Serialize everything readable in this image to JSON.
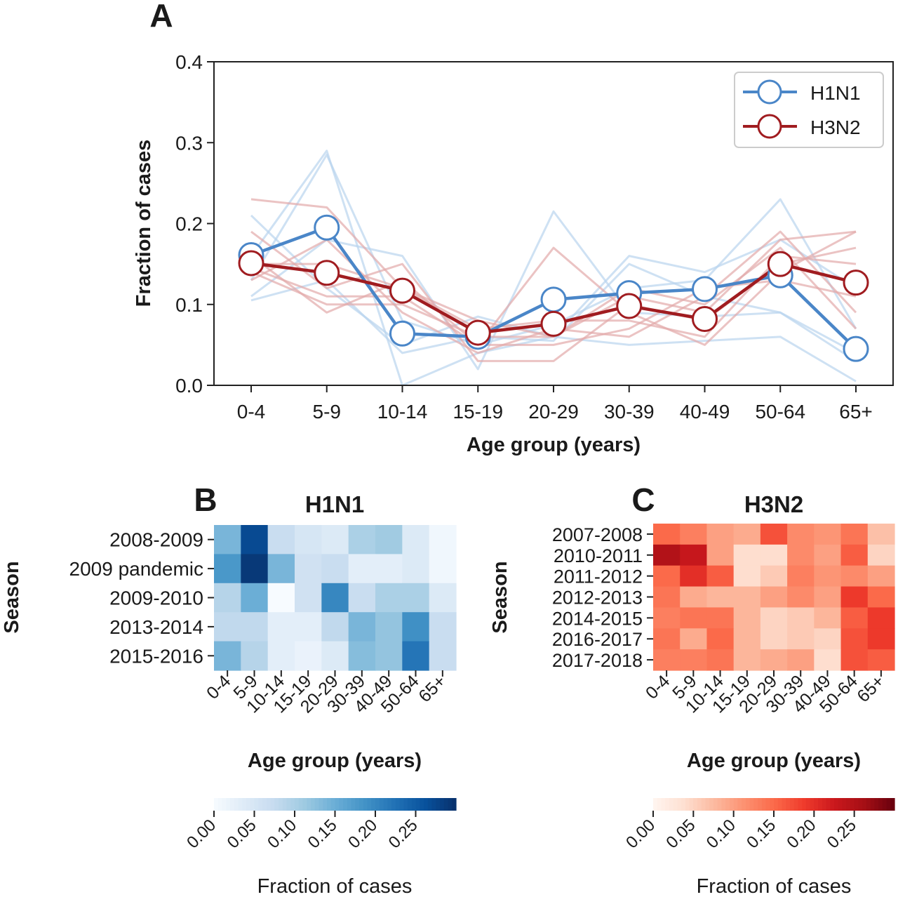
{
  "panels": {
    "a": {
      "letter": "A"
    },
    "b": {
      "letter": "B",
      "title": "H1N1"
    },
    "c": {
      "letter": "C",
      "title": "H3N2"
    }
  },
  "colors": {
    "h1n1": "#4a86c8",
    "h3n2": "#a01c20",
    "h1n1_faint": "#b9d4ee",
    "h3n2_faint": "#e3a9a9"
  },
  "chart_data": [
    {
      "type": "line",
      "panel": "A",
      "xlabel": "Age group (years)",
      "ylabel": "Fraction of cases",
      "categories": [
        "0-4",
        "5-9",
        "10-14",
        "15-19",
        "20-29",
        "30-39",
        "40-49",
        "50-64",
        "65+"
      ],
      "ylim": [
        0,
        0.4
      ],
      "yticks": [
        "0.0",
        "0.1",
        "0.2",
        "0.3",
        "0.4"
      ],
      "legend_position": "top-right",
      "series": [
        {
          "name": "H1N1",
          "values": [
            0.161,
            0.195,
            0.064,
            0.06,
            0.106,
            0.114,
            0.119,
            0.136,
            0.045
          ]
        },
        {
          "name": "H3N2",
          "values": [
            0.151,
            0.139,
            0.117,
            0.065,
            0.076,
            0.098,
            0.082,
            0.15,
            0.127
          ]
        }
      ],
      "background_lines": {
        "H1N1": [
          [
            0.13,
            0.285,
            0.08,
            0.05,
            0.075,
            0.12,
            0.13,
            0.23,
            0.07
          ],
          [
            0.16,
            0.29,
            0.0,
            0.04,
            0.06,
            0.05,
            0.055,
            0.06,
            0.005
          ],
          [
            0.11,
            0.18,
            0.16,
            0.02,
            0.215,
            0.09,
            0.085,
            0.09,
            0.04
          ],
          [
            0.21,
            0.12,
            0.05,
            0.085,
            0.06,
            0.16,
            0.14,
            0.18,
            0.12
          ],
          [
            0.105,
            0.13,
            0.04,
            0.06,
            0.055,
            0.15,
            0.11,
            0.09,
            0.03
          ]
        ],
        "H3N2": [
          [
            0.23,
            0.22,
            0.12,
            0.08,
            0.06,
            0.11,
            0.09,
            0.18,
            0.19
          ],
          [
            0.19,
            0.12,
            0.15,
            0.03,
            0.03,
            0.1,
            0.08,
            0.15,
            0.17
          ],
          [
            0.16,
            0.09,
            0.13,
            0.05,
            0.17,
            0.09,
            0.05,
            0.14,
            0.19
          ],
          [
            0.14,
            0.1,
            0.1,
            0.06,
            0.06,
            0.12,
            0.1,
            0.17,
            0.07
          ],
          [
            0.13,
            0.18,
            0.09,
            0.04,
            0.07,
            0.06,
            0.11,
            0.19,
            0.09
          ],
          [
            0.15,
            0.15,
            0.12,
            0.07,
            0.08,
            0.08,
            0.06,
            0.16,
            0.15
          ],
          [
            0.145,
            0.11,
            0.11,
            0.05,
            0.05,
            0.07,
            0.12,
            0.13,
            0.11
          ]
        ]
      }
    },
    {
      "type": "heatmap",
      "panel": "B",
      "title": "H1N1",
      "xlabel": "Age group (years)",
      "ylabel": "Season",
      "x": [
        "0-4",
        "5-9",
        "10-14",
        "15-19",
        "20-29",
        "30-39",
        "40-49",
        "50-64",
        "65+"
      ],
      "y": [
        "2008-2009",
        "2009 pandemic",
        "2009-2010",
        "2013-2014",
        "2015-2016"
      ],
      "values": [
        [
          0.14,
          0.27,
          0.07,
          0.05,
          0.04,
          0.1,
          0.11,
          0.04,
          0.01
        ],
        [
          0.18,
          0.29,
          0.14,
          0.06,
          0.07,
          0.03,
          0.03,
          0.04,
          0.01
        ],
        [
          0.09,
          0.15,
          0.0,
          0.06,
          0.2,
          0.07,
          0.1,
          0.1,
          0.04
        ],
        [
          0.08,
          0.08,
          0.03,
          0.03,
          0.08,
          0.14,
          0.12,
          0.19,
          0.07
        ],
        [
          0.14,
          0.09,
          0.03,
          0.02,
          0.04,
          0.13,
          0.12,
          0.22,
          0.07
        ]
      ],
      "colorbar": {
        "label": "Fraction of cases",
        "range": [
          0,
          0.3
        ],
        "ticks": [
          "0.00",
          "0.05",
          "0.10",
          "0.15",
          "0.20",
          "0.25"
        ]
      }
    },
    {
      "type": "heatmap",
      "panel": "C",
      "title": "H3N2",
      "xlabel": "Age group (years)",
      "ylabel": "Season",
      "x": [
        "0-4",
        "5-9",
        "10-14",
        "15-19",
        "20-29",
        "30-39",
        "40-49",
        "50-64",
        "65+"
      ],
      "y": [
        "2007-2008",
        "2010-2011",
        "2011-2012",
        "2012-2013",
        "2014-2015",
        "2016-2017",
        "2017-2018"
      ],
      "values": [
        [
          0.15,
          0.13,
          0.1,
          0.09,
          0.17,
          0.12,
          0.11,
          0.14,
          0.07
        ],
        [
          0.25,
          0.23,
          0.1,
          0.04,
          0.04,
          0.12,
          0.1,
          0.16,
          0.05
        ],
        [
          0.15,
          0.2,
          0.16,
          0.04,
          0.06,
          0.13,
          0.11,
          0.12,
          0.1
        ],
        [
          0.14,
          0.09,
          0.08,
          0.08,
          0.1,
          0.12,
          0.1,
          0.19,
          0.15
        ],
        [
          0.13,
          0.14,
          0.14,
          0.08,
          0.05,
          0.06,
          0.08,
          0.16,
          0.19
        ],
        [
          0.14,
          0.09,
          0.15,
          0.08,
          0.05,
          0.06,
          0.05,
          0.17,
          0.19
        ],
        [
          0.13,
          0.13,
          0.14,
          0.08,
          0.09,
          0.1,
          0.04,
          0.17,
          0.16
        ]
      ],
      "colorbar": {
        "label": "Fraction of cases",
        "range": [
          0,
          0.3
        ],
        "ticks": [
          "0.00",
          "0.05",
          "0.10",
          "0.15",
          "0.20",
          "0.25"
        ]
      }
    }
  ]
}
